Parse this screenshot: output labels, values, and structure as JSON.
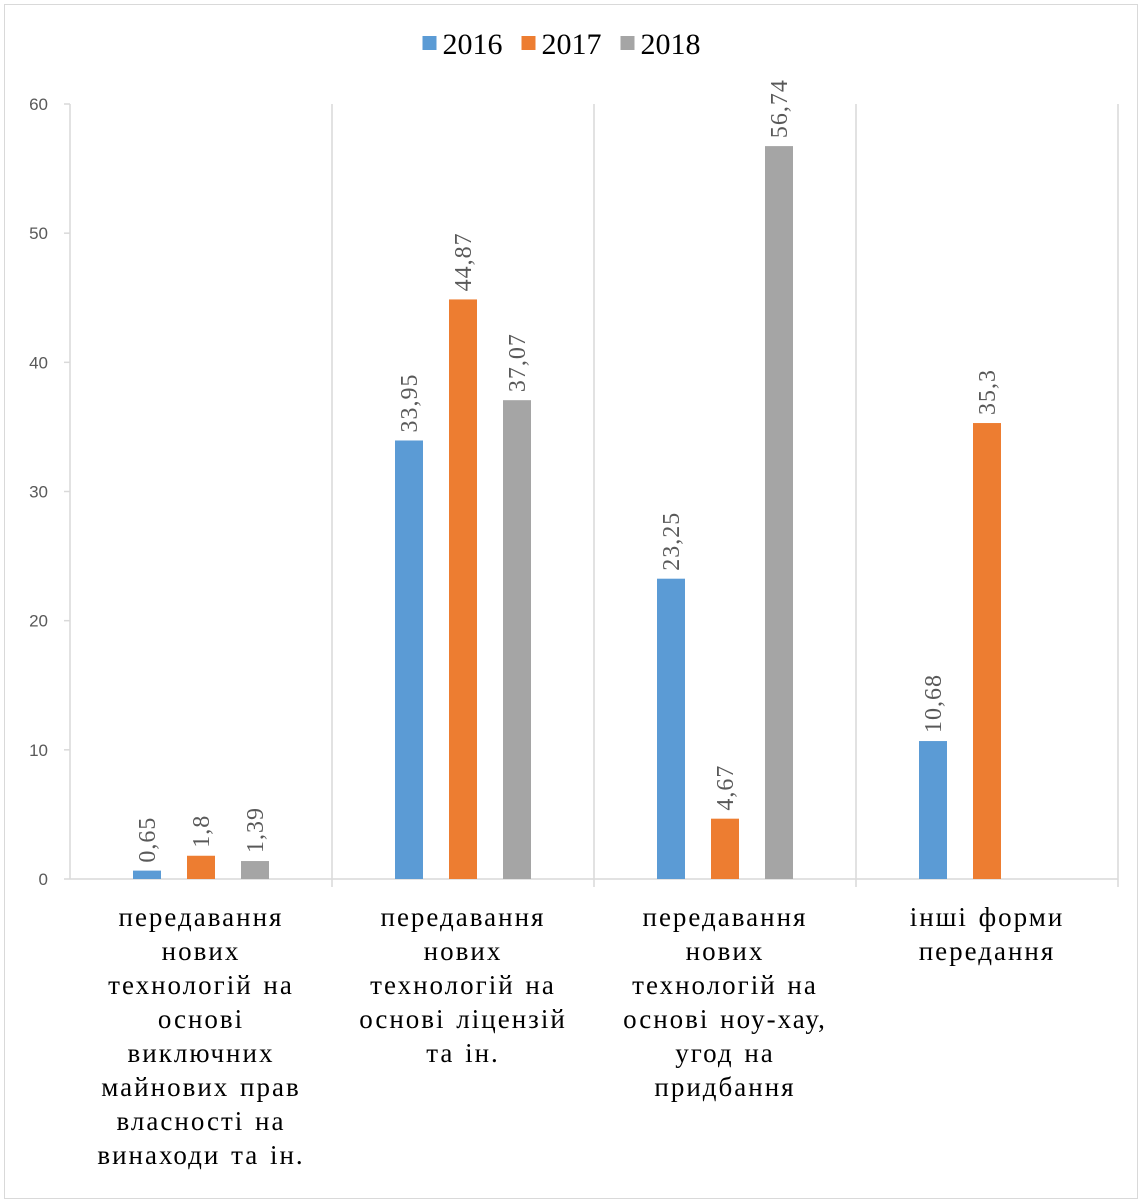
{
  "chart_data": {
    "type": "bar",
    "categories": [
      "передавання нових технологій на основі виключних майнових прав власності на винаходи та ін.",
      "передавання нових технологій на основі ліцензій та ін.",
      "передавання нових технологій на основі ноу-хау, угод на придбання",
      "інші форми передання"
    ],
    "category_lines": [
      [
        "передавання",
        "нових",
        "технологій на",
        "основі",
        "виключних",
        "майнових прав",
        "власності на",
        "винаходи та ін."
      ],
      [
        "передавання",
        "нових",
        "технологій на",
        "основі ліцензій",
        "та ін."
      ],
      [
        "передавання",
        "нових",
        "технологій на",
        "основі ноу-хау,",
        "угод на",
        "придбання"
      ],
      [
        "інші форми",
        "передання"
      ]
    ],
    "series": [
      {
        "name": "2016",
        "color": "#5b9bd5",
        "values": [
          0.65,
          33.95,
          23.25,
          10.68
        ],
        "labels": [
          "0,65",
          "33,95",
          "23,25",
          "10,68"
        ]
      },
      {
        "name": "2017",
        "color": "#ed7d31",
        "values": [
          1.8,
          44.87,
          4.67,
          35.3
        ],
        "labels": [
          "1,8",
          "44,87",
          "4,67",
          "35,3"
        ]
      },
      {
        "name": "2018",
        "color": "#a5a5a5",
        "values": [
          1.39,
          37.07,
          56.74,
          null
        ],
        "labels": [
          "1,39",
          "37,07",
          "56,74",
          ""
        ]
      }
    ],
    "ylim": [
      0,
      60
    ],
    "yticks": [
      0,
      10,
      20,
      30,
      40,
      50,
      60
    ],
    "legend_position": "top",
    "grid": "vertical category separators"
  }
}
